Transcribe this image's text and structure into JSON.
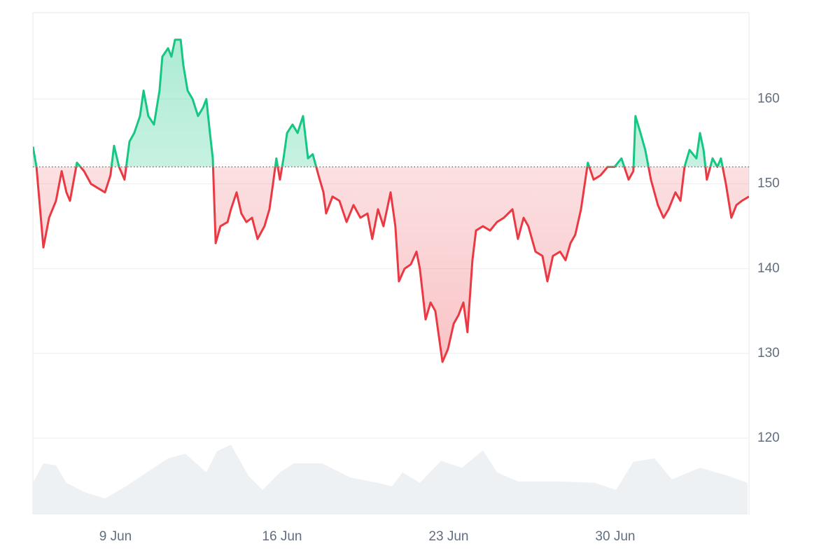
{
  "chart_data": {
    "type": "line",
    "baseline": 152,
    "up_color": "#16c784",
    "down_color": "#ea3943",
    "x": [
      5.53,
      5.68,
      5.97,
      6.21,
      6.5,
      6.74,
      6.94,
      7.09,
      7.38,
      7.68,
      7.97,
      8.26,
      8.56,
      8.79,
      8.94,
      9.15,
      9.38,
      9.59,
      9.79,
      10.03,
      10.18,
      10.38,
      10.62,
      10.85,
      10.97,
      11.21,
      11.35,
      11.5,
      11.74,
      11.85,
      12.03,
      12.24,
      12.47,
      12.68,
      12.82,
      12.97,
      13.09,
      13.21,
      13.41,
      13.71,
      13.85,
      14.09,
      14.29,
      14.5,
      14.74,
      14.97,
      15.26,
      15.47,
      15.62,
      15.76,
      15.91,
      16.06,
      16.21,
      16.44,
      16.65,
      16.88,
      17.09,
      17.29,
      17.53,
      17.74,
      17.85,
      18.12,
      18.41,
      18.71,
      19.0,
      19.29,
      19.59,
      19.79,
      20.03,
      20.26,
      20.56,
      20.76,
      20.91,
      21.15,
      21.41,
      21.65,
      21.79,
      22.03,
      22.24,
      22.44,
      22.59,
      22.74,
      22.97,
      23.21,
      23.41,
      23.62,
      23.79,
      24.0,
      24.15,
      24.44,
      24.74,
      25.03,
      25.32,
      25.68,
      25.91,
      26.15,
      26.35,
      26.65,
      26.94,
      27.15,
      27.38,
      27.68,
      27.91,
      28.12,
      28.32,
      28.56,
      28.85,
      29.09,
      29.38,
      29.68,
      29.97,
      30.26,
      30.56,
      30.76,
      30.85,
      31.06,
      31.26,
      31.5,
      31.79,
      32.03,
      32.24,
      32.53,
      32.74,
      32.91,
      33.12,
      33.41,
      33.56,
      33.71,
      33.85,
      34.09,
      34.29,
      34.44,
      34.65,
      34.88,
      35.09,
      35.32,
      35.62
    ],
    "values": [
      154.4,
      152,
      142.5,
      146,
      148,
      151.5,
      149,
      148,
      152.5,
      151.5,
      150,
      149.5,
      149,
      151,
      154.5,
      152,
      150.5,
      155,
      156,
      158,
      161,
      158,
      157,
      161,
      165,
      166,
      165,
      167,
      167,
      164,
      161,
      160,
      158,
      159,
      160,
      156,
      153,
      143,
      145,
      145.5,
      147,
      149,
      146.5,
      145.5,
      146,
      143.5,
      145,
      147,
      150,
      153,
      150.5,
      153,
      156,
      157,
      156,
      158,
      153,
      153.5,
      151,
      149,
      146.5,
      148.5,
      148,
      145.5,
      147.5,
      146,
      146.5,
      143.5,
      147,
      145,
      149,
      145,
      138.5,
      140,
      140.5,
      142,
      140,
      134,
      136,
      135,
      132,
      129,
      130.5,
      133.5,
      134.5,
      136,
      132.5,
      141,
      144.5,
      145,
      144.5,
      145.5,
      146,
      147,
      143.5,
      146,
      145,
      142,
      141.5,
      138.5,
      141.5,
      142,
      141,
      143,
      144,
      147,
      152.5,
      150.5,
      151,
      152,
      152,
      153,
      150.5,
      151.5,
      158,
      156,
      154,
      150.5,
      147.5,
      146,
      147,
      149,
      148,
      152,
      154,
      153,
      156,
      154,
      150.5,
      153,
      152,
      153,
      150,
      146,
      147.5,
      148,
      148.5
    ],
    "volume": {
      "color": "#eef1f4",
      "y2lim": [
        0,
        100
      ],
      "x": [
        5.53,
        5.97,
        6.5,
        6.94,
        7.68,
        8.56,
        9.44,
        10.32,
        11.21,
        11.94,
        12.82,
        13.26,
        13.85,
        14.59,
        15.18,
        15.91,
        16.5,
        17.68,
        18.85,
        20.03,
        20.62,
        21.06,
        21.79,
        22.68,
        23.56,
        24.44,
        25.03,
        25.91,
        27.68,
        29.15,
        30.03,
        30.76,
        31.65,
        32.38,
        33.56,
        34.74,
        35.56
      ],
      "values": [
        6.3,
        10.2,
        9.8,
        6.3,
        4.5,
        3.2,
        5.6,
        8.4,
        11.2,
        12.1,
        8.4,
        12.6,
        13.9,
        7.7,
        4.9,
        8.4,
        10.2,
        10.2,
        7.4,
        6.3,
        5.6,
        8.4,
        6.3,
        10.7,
        9.3,
        12.8,
        8.4,
        6.6,
        6.6,
        6.3,
        4.9,
        10.5,
        11.2,
        7.0,
        9.3,
        7.7,
        6.3
      ]
    },
    "xlim": [
      5.53,
      35.62
    ],
    "xticks": [
      {
        "value": 9,
        "label": "9 Jun"
      },
      {
        "value": 16,
        "label": "16 Jun"
      },
      {
        "value": 23,
        "label": "23 Jun"
      },
      {
        "value": 30,
        "label": "30 Jun"
      }
    ],
    "ylim": [
      111,
      170.2
    ],
    "yticks": [
      120,
      130,
      140,
      150,
      160
    ],
    "grid": true
  }
}
